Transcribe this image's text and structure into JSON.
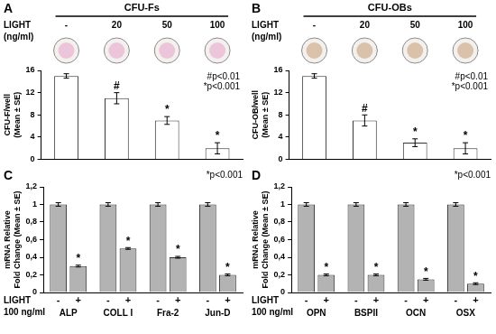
{
  "chart_data": [
    {
      "type": "bar",
      "panel": "A",
      "title": "CFU-Fs",
      "header": "LIGHT",
      "unit": "(ng/ml)",
      "categories": [
        "-",
        "20",
        "50",
        "100"
      ],
      "values": [
        15,
        11,
        7,
        2
      ],
      "errors": [
        0.4,
        1,
        0.7,
        1
      ],
      "bar_marks": [
        null,
        "#",
        "*",
        "*"
      ],
      "annotations": [
        "#p<0.01",
        "*p<0.001"
      ],
      "ylabel": [
        "CFU-F/well",
        "(Mean ± SE)"
      ],
      "color": "#ffffff",
      "ylim": [
        0,
        16
      ],
      "yticks": [
        0,
        4,
        8,
        12,
        16
      ],
      "grid": false
    },
    {
      "type": "bar",
      "panel": "B",
      "title": "CFU-OBs",
      "header": "LIGHT",
      "unit": "(ng/ml)",
      "categories": [
        "-",
        "20",
        "50",
        "100"
      ],
      "values": [
        15,
        7,
        3,
        2
      ],
      "errors": [
        0.4,
        1,
        0.7,
        1
      ],
      "bar_marks": [
        null,
        "#",
        "*",
        "*"
      ],
      "annotations": [
        "#p<0.01",
        "*p<0.001"
      ],
      "ylabel": [
        "CFU-OB/well",
        "(Mean ± SE)"
      ],
      "color": "#ffffff",
      "ylim": [
        0,
        16
      ],
      "yticks": [
        0,
        4,
        8,
        12,
        16
      ],
      "grid": false
    },
    {
      "type": "bar",
      "panel": "C",
      "categories": [
        "ALP",
        "COLL I",
        "Fra-2",
        "Jun-D"
      ],
      "series": [
        {
          "name": "-",
          "color": "#b3b3b3",
          "values": [
            1,
            1,
            1,
            1
          ],
          "errors": [
            0.02,
            0.02,
            0.02,
            0.02
          ]
        },
        {
          "name": "+",
          "color": "#b3b3b3",
          "values": [
            0.3,
            0.5,
            0.4,
            0.2
          ],
          "errors": [
            0.01,
            0.01,
            0.01,
            0.01
          ],
          "bar_marks": [
            "*",
            "*",
            "*",
            "*"
          ]
        }
      ],
      "xlabel": [
        "LIGHT",
        "100 ng/ml"
      ],
      "annotations": [
        "*p<0.001"
      ],
      "ylabel": [
        "mRNA Relative",
        "Fold Change (Mean ± SE)"
      ],
      "ylim": [
        0,
        1.2
      ],
      "yticks": [
        0,
        {
          "value": 0.2,
          "label": "0,2"
        },
        {
          "value": 0.4,
          "label": "0,4"
        },
        {
          "value": 0.6,
          "label": "0,6"
        },
        {
          "value": 0.8,
          "label": "0,8"
        },
        1,
        {
          "value": 1.2,
          "label": "1,2"
        }
      ],
      "grid": false
    },
    {
      "type": "bar",
      "panel": "D",
      "categories": [
        "OPN",
        "BSPII",
        "OCN",
        "OSX"
      ],
      "series": [
        {
          "name": "-",
          "color": "#b3b3b3",
          "values": [
            1,
            1,
            1,
            1
          ],
          "errors": [
            0.02,
            0.02,
            0.02,
            0.02
          ]
        },
        {
          "name": "+",
          "color": "#b3b3b3",
          "values": [
            0.2,
            0.2,
            0.15,
            0.1
          ],
          "errors": [
            0.01,
            0.01,
            0.01,
            0.01
          ],
          "bar_marks": [
            "*",
            "*",
            "*",
            "*"
          ]
        }
      ],
      "xlabel": [
        "LIGHT",
        "100 ng/ml"
      ],
      "annotations": [
        "*p<0.001"
      ],
      "ylabel": [
        "mRNA Relative",
        "Fold Change (Mean ± SE)"
      ],
      "ylim": [
        0,
        1.2
      ],
      "yticks": [
        0,
        {
          "value": 0.2,
          "label": "0,2"
        },
        {
          "value": 0.4,
          "label": "0,4"
        },
        {
          "value": 0.6,
          "label": "0,6"
        },
        {
          "value": 0.8,
          "label": "0,8"
        },
        1,
        {
          "value": 1.2,
          "label": "1,2"
        }
      ],
      "grid": false
    }
  ]
}
